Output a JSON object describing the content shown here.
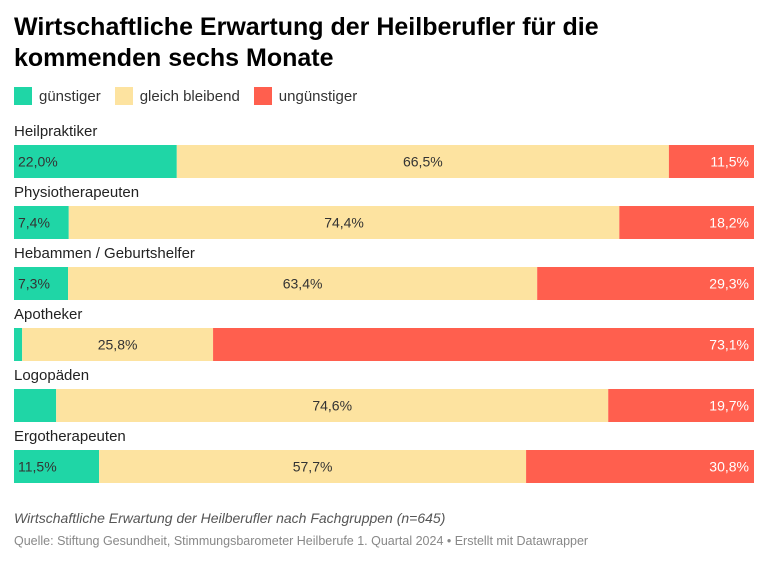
{
  "title": "Wirtschaftliche Erwartung der Heilberufler für die kommenden sechs Monate",
  "footer": {
    "description": "Wirtschaftliche Erwartung der Heilberufler nach Fachgruppen (n=645)",
    "source": "Quelle: Stiftung Gesundheit, Stimmungsbarometer Heilberufe 1. Quartal 2024 • Erstellt mit Datawrapper"
  },
  "chart_data": {
    "type": "bar",
    "orientation": "horizontal",
    "stacked": true,
    "normalized_percent": true,
    "legend_position": "top-left",
    "categories": [
      "Heilpraktiker",
      "Physiotherapeuten",
      "Hebammen / Geburtshelfer",
      "Apotheker",
      "Logopäden",
      "Ergotherapeuten"
    ],
    "series": [
      {
        "name": "günstiger",
        "color": "#1fd6a6",
        "values": [
          22.0,
          7.4,
          7.3,
          1.1,
          5.7,
          11.5
        ],
        "labels": [
          "22,0%",
          "7,4%",
          "7,3%",
          "",
          "",
          "11,5%"
        ]
      },
      {
        "name": "gleich bleibend",
        "color": "#fde3a0",
        "values": [
          66.5,
          74.4,
          63.4,
          25.8,
          74.6,
          57.7
        ],
        "labels": [
          "66,5%",
          "74,4%",
          "63,4%",
          "25,8%",
          "74,6%",
          "57,7%"
        ]
      },
      {
        "name": "ungünstiger",
        "color": "#ff5f4e",
        "values": [
          11.5,
          18.2,
          29.3,
          73.1,
          19.7,
          30.8
        ],
        "labels": [
          "11,5%",
          "18,2%",
          "29,3%",
          "73,1%",
          "19,7%",
          "30,8%"
        ]
      }
    ]
  }
}
